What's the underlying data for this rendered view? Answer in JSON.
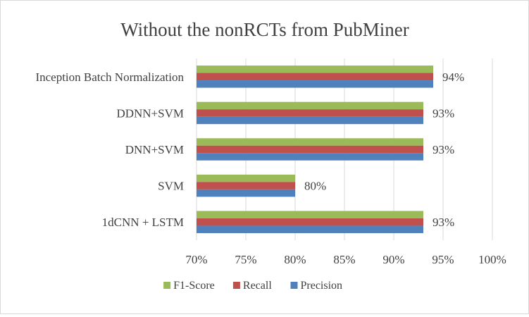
{
  "chart_data": {
    "type": "bar",
    "orientation": "horizontal",
    "title": "Without the nonRCTs  from PubMiner",
    "xlabel": "",
    "ylabel": "",
    "categories": [
      "Inception Batch Normalization",
      "DDNN+SVM",
      "DNN+SVM",
      "SVM",
      "1dCNN + LSTM"
    ],
    "series": [
      {
        "name": "F1-Score",
        "color": "#9bbb59",
        "values": [
          94,
          93,
          93,
          80,
          93
        ]
      },
      {
        "name": "Recall",
        "color": "#c0504d",
        "values": [
          94,
          93,
          93,
          80,
          93
        ]
      },
      {
        "name": "Precision",
        "color": "#4f81bd",
        "values": [
          94,
          93,
          93,
          80,
          93
        ]
      }
    ],
    "data_labels": [
      "94%",
      "93%",
      "93%",
      "80%",
      "93%"
    ],
    "xlim": [
      70,
      100
    ],
    "xticks": [
      70,
      75,
      80,
      85,
      90,
      95,
      100
    ],
    "xtick_labels": [
      "70%",
      "75%",
      "80%",
      "85%",
      "90%",
      "95%",
      "100%"
    ],
    "grid": "vertical",
    "legend": "bottom"
  }
}
